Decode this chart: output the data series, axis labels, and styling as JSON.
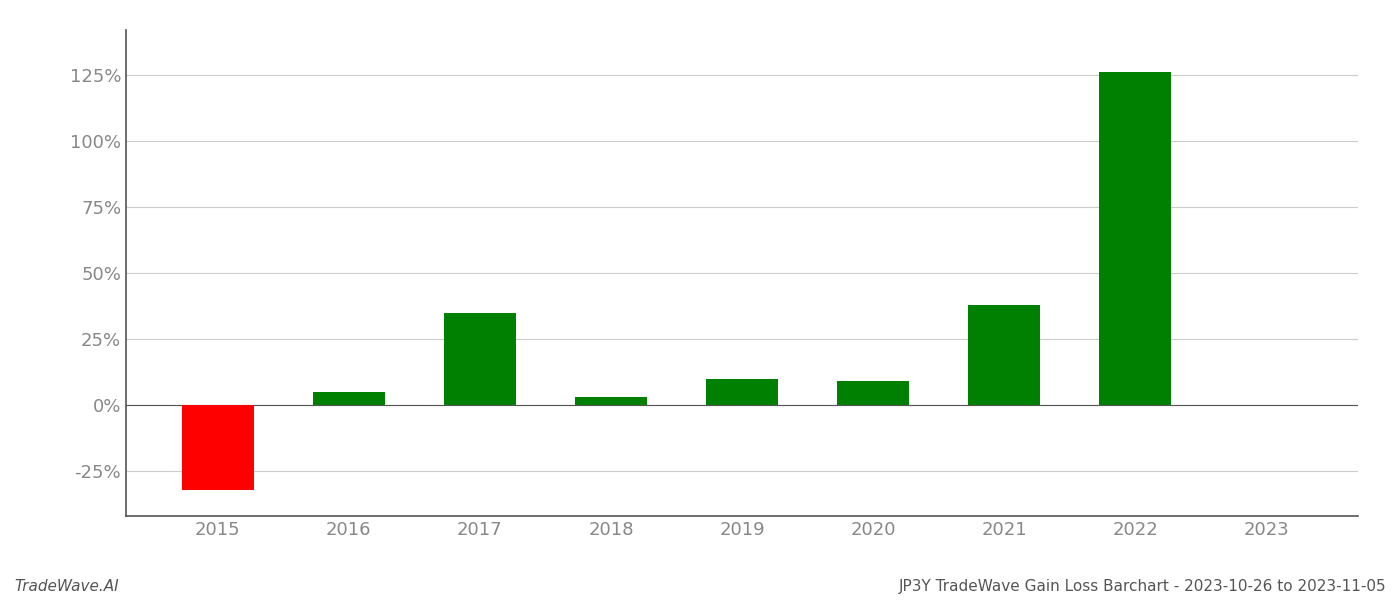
{
  "years": [
    2015,
    2016,
    2017,
    2018,
    2019,
    2020,
    2021,
    2022,
    2023
  ],
  "values": [
    -0.32,
    0.05,
    0.35,
    0.03,
    0.1,
    0.09,
    0.38,
    1.26,
    null
  ],
  "colors": [
    "#ff0000",
    "#008000",
    "#008000",
    "#008000",
    "#008000",
    "#008000",
    "#008000",
    "#008000",
    null
  ],
  "bar_width": 0.55,
  "ylim": [
    -0.42,
    1.42
  ],
  "yticks": [
    -0.25,
    0.0,
    0.25,
    0.5,
    0.75,
    1.0,
    1.25
  ],
  "footer_left": "TradeWave.AI",
  "footer_right": "JP3Y TradeWave Gain Loss Barchart - 2023-10-26 to 2023-11-05",
  "background_color": "#ffffff",
  "grid_color": "#cccccc",
  "axis_color": "#555555",
  "tick_color": "#888888",
  "font_color": "#555555",
  "tick_fontsize": 13,
  "footer_fontsize": 11
}
